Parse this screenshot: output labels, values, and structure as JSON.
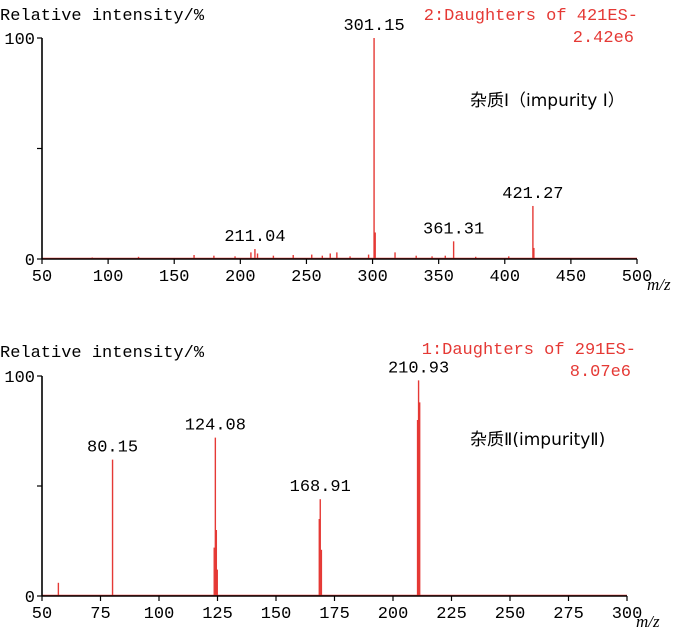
{
  "chart_data": [
    {
      "type": "bar",
      "title": "2:Daughters of 421ES-",
      "title_line2": "2.42e6",
      "ylabel": "Relative intensity/%",
      "xlabel": "m/z",
      "xlim": [
        50,
        500
      ],
      "ylim": [
        0,
        100
      ],
      "xticks": [
        "50",
        "100",
        "150",
        "200",
        "250",
        "300",
        "350",
        "400",
        "450",
        "500"
      ],
      "yticks": [
        "0",
        "100"
      ],
      "annotation": "杂质Ⅰ（impurity Ⅰ）",
      "accent_color": "#e53935",
      "peaks": [
        {
          "mz": 88,
          "intensity": 0.7
        },
        {
          "mz": 123,
          "intensity": 1.0
        },
        {
          "mz": 165,
          "intensity": 1.8
        },
        {
          "mz": 180,
          "intensity": 1.5
        },
        {
          "mz": 196,
          "intensity": 1.2
        },
        {
          "mz": 208,
          "intensity": 3.0
        },
        {
          "mz": 211.04,
          "intensity": 4.5
        },
        {
          "mz": 213,
          "intensity": 2.5
        },
        {
          "mz": 225,
          "intensity": 1.5
        },
        {
          "mz": 240,
          "intensity": 1.8
        },
        {
          "mz": 254,
          "intensity": 2.0
        },
        {
          "mz": 262,
          "intensity": 1.5
        },
        {
          "mz": 268,
          "intensity": 2.5
        },
        {
          "mz": 273,
          "intensity": 3.0
        },
        {
          "mz": 283,
          "intensity": 1.2
        },
        {
          "mz": 297,
          "intensity": 2.0
        },
        {
          "mz": 301.15,
          "intensity": 100
        },
        {
          "mz": 302,
          "intensity": 12
        },
        {
          "mz": 317,
          "intensity": 3.0
        },
        {
          "mz": 333,
          "intensity": 1.5
        },
        {
          "mz": 345,
          "intensity": 1.2
        },
        {
          "mz": 355,
          "intensity": 1.5
        },
        {
          "mz": 361.31,
          "intensity": 8
        },
        {
          "mz": 378,
          "intensity": 1.0
        },
        {
          "mz": 403,
          "intensity": 1.2
        },
        {
          "mz": 421.27,
          "intensity": 24
        },
        {
          "mz": 422,
          "intensity": 5
        }
      ],
      "labels": [
        {
          "text": "211.04",
          "mz": 211.04,
          "intensity": 4.5
        },
        {
          "text": "301.15",
          "mz": 301.15,
          "intensity": 100
        },
        {
          "text": "361.31",
          "mz": 361.31,
          "intensity": 8
        },
        {
          "text": "421.27",
          "mz": 421.27,
          "intensity": 24
        }
      ]
    },
    {
      "type": "bar",
      "title": "1:Daughters of 291ES-",
      "title_line2": "8.07e6",
      "ylabel": "Relative intensity/%",
      "xlabel": "m/z",
      "xlim": [
        50,
        300
      ],
      "ylim": [
        0,
        100
      ],
      "xticks": [
        "50",
        "75",
        "100",
        "125",
        "150",
        "175",
        "200",
        "225",
        "250",
        "275",
        "300"
      ],
      "yticks": [
        "0",
        "100"
      ],
      "annotation": "杂质Ⅱ(impurityⅡ)",
      "accent_color": "#e53935",
      "peaks": [
        {
          "mz": 57,
          "intensity": 6
        },
        {
          "mz": 80.15,
          "intensity": 62
        },
        {
          "mz": 123.6,
          "intensity": 22
        },
        {
          "mz": 124.08,
          "intensity": 72
        },
        {
          "mz": 124.5,
          "intensity": 30
        },
        {
          "mz": 124.9,
          "intensity": 12
        },
        {
          "mz": 168.5,
          "intensity": 35
        },
        {
          "mz": 168.91,
          "intensity": 44
        },
        {
          "mz": 169.4,
          "intensity": 21
        },
        {
          "mz": 210.5,
          "intensity": 80
        },
        {
          "mz": 210.93,
          "intensity": 98
        },
        {
          "mz": 211.4,
          "intensity": 88
        }
      ],
      "labels": [
        {
          "text": "80.15",
          "mz": 80.15,
          "intensity": 62
        },
        {
          "text": "124.08",
          "mz": 124.08,
          "intensity": 72
        },
        {
          "text": "168.91",
          "mz": 168.91,
          "intensity": 44
        },
        {
          "text": "210.93",
          "mz": 210.93,
          "intensity": 98
        }
      ]
    }
  ]
}
